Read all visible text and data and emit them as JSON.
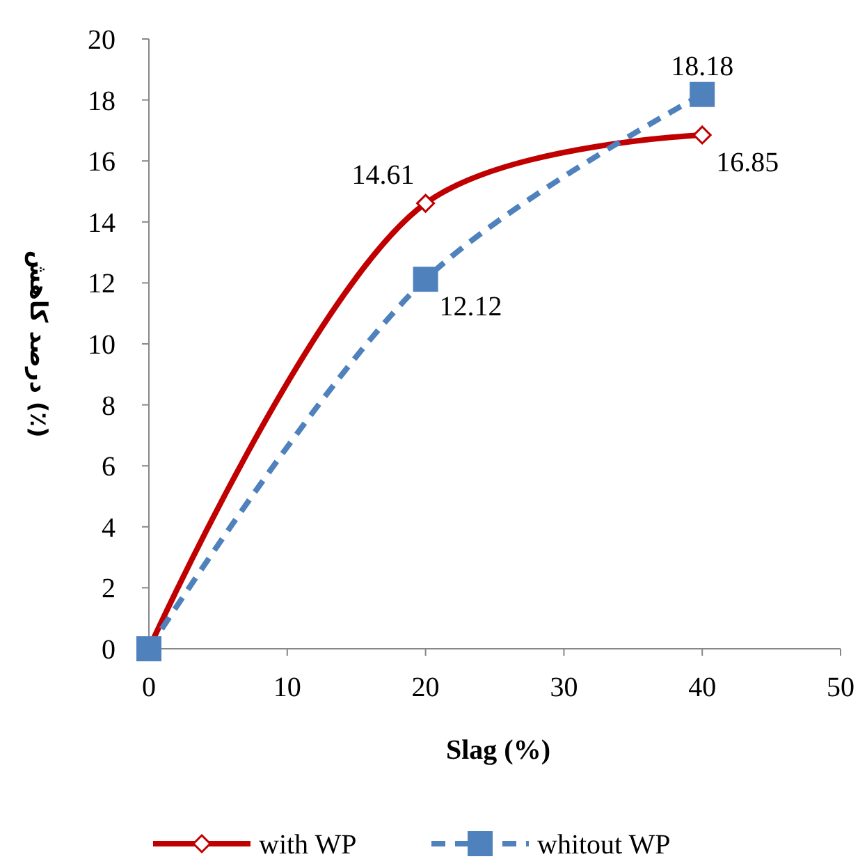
{
  "chart_data": {
    "type": "line",
    "xlabel": "Slag (%)",
    "ylabel": "درصد کاهش (٪)",
    "x": [
      0,
      20,
      40
    ],
    "series": [
      {
        "name": "with WP",
        "color": "#c00000",
        "values": [
          0,
          14.61,
          16.85
        ],
        "value_labels": [
          null,
          "14.61",
          "16.85"
        ],
        "marker": "diamond",
        "line_style": "solid"
      },
      {
        "name": "whitout WP",
        "color": "#4f81bd",
        "values": [
          0,
          12.12,
          18.18
        ],
        "value_labels": [
          null,
          "12.12",
          "18.18"
        ],
        "marker": "square",
        "line_style": "dashed"
      }
    ],
    "xlim": [
      0,
      50
    ],
    "xticks": [
      0,
      10,
      20,
      30,
      40,
      50
    ],
    "ylim": [
      0,
      20
    ],
    "yticks": [
      0,
      2,
      4,
      6,
      8,
      10,
      12,
      14,
      16,
      18,
      20
    ],
    "grid": false,
    "legend": "bottom"
  }
}
